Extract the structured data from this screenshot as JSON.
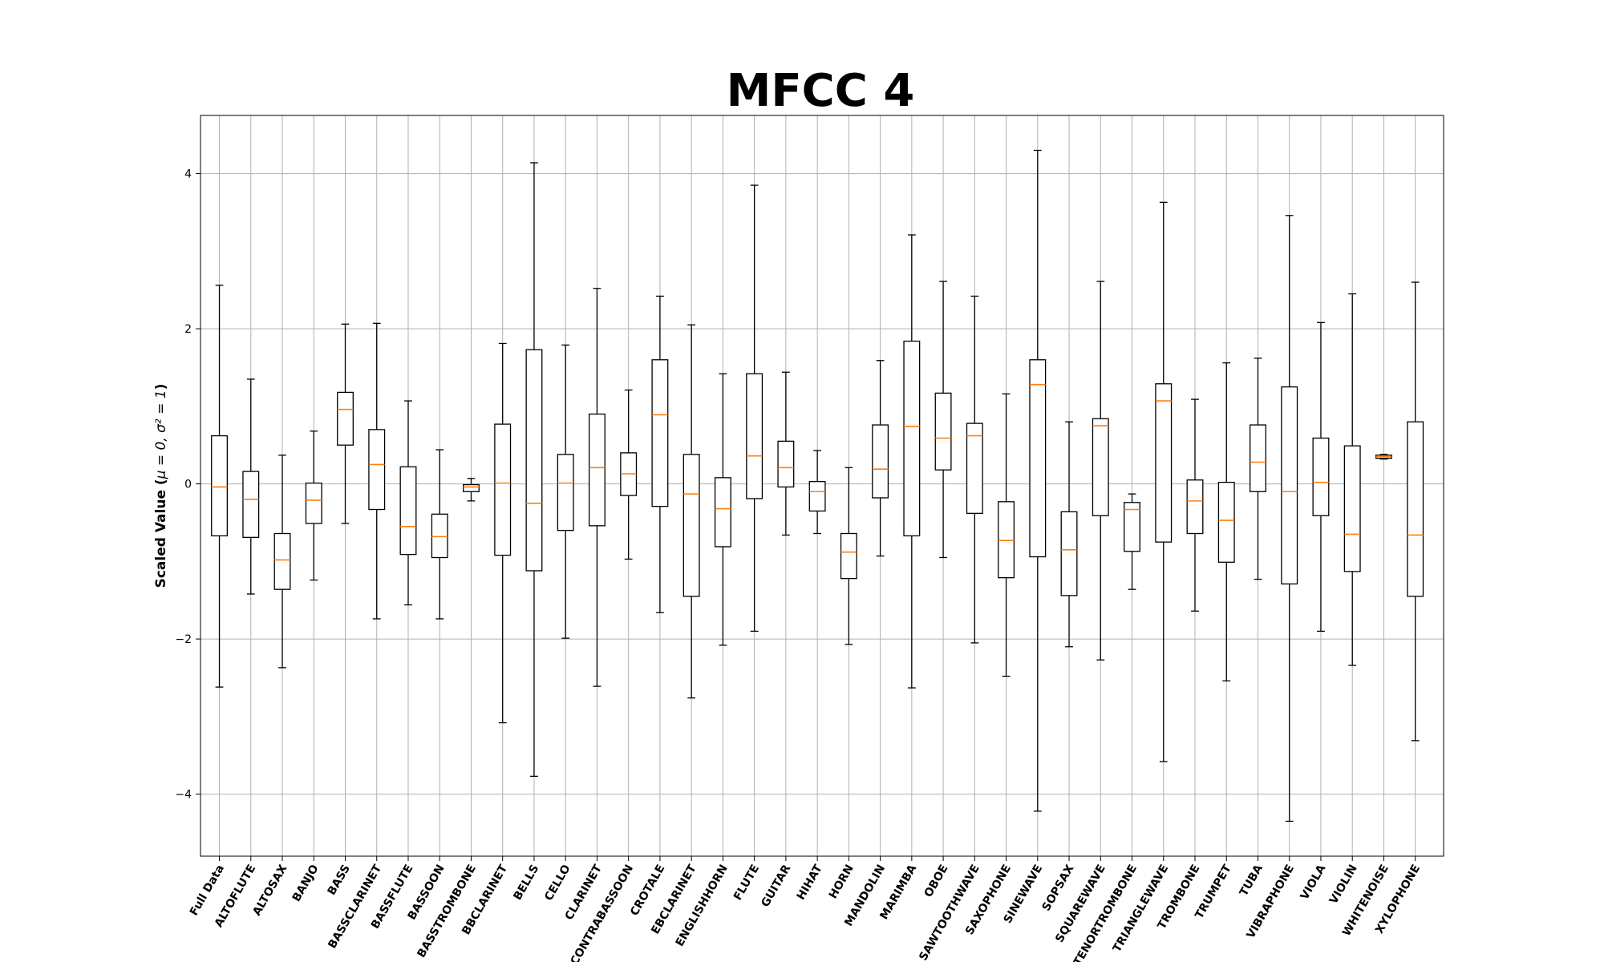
{
  "chart_data": {
    "type": "boxplot",
    "title": "MFCC 4",
    "ylabel_main": "Scaled Value (",
    "ylabel_math": "μ = 0, σ² = 1",
    "ylabel_end": ")",
    "ylim": [
      -4.8,
      4.75
    ],
    "yticks": [
      -4,
      -2,
      0,
      2,
      4
    ],
    "grid": true,
    "colors": {
      "box": "#000000",
      "median": "#ff7f0e",
      "grid": "#b0b0b0"
    },
    "categories": [
      "Full Data",
      "ALTOFLUTE",
      "ALTOSAX",
      "BANJO",
      "BASS",
      "BASSCLARINET",
      "BASSFLUTE",
      "BASSOON",
      "BASSTROMBONE",
      "BBCLARINET",
      "BELLS",
      "CELLO",
      "CLARINET",
      "CONTRABASSOON",
      "CROTALE",
      "EBCLARINET",
      "ENGLISHHORN",
      "FLUTE",
      "GUITAR",
      "HIHAT",
      "HORN",
      "MANDOLIN",
      "MARIMBA",
      "OBOE",
      "SAWTOOTHWAVE",
      "SAXOPHONE",
      "SINEWAVE",
      "SOPSAX",
      "SQUAREWAVE",
      "TENORTROMBONE",
      "TRIANGLEWAVE",
      "TROMBONE",
      "TRUMPET",
      "TUBA",
      "VIBRAPHONE",
      "VIOLA",
      "VIOLIN",
      "WHITENOISE",
      "XYLOPHONE"
    ],
    "boxes": [
      {
        "whislo": -2.62,
        "q1": -0.67,
        "med": -0.04,
        "q3": 0.62,
        "whishi": 2.56
      },
      {
        "whislo": -1.42,
        "q1": -0.69,
        "med": -0.2,
        "q3": 0.16,
        "whishi": 1.35
      },
      {
        "whislo": -2.37,
        "q1": -1.36,
        "med": -0.98,
        "q3": -0.64,
        "whishi": 0.37
      },
      {
        "whislo": -1.24,
        "q1": -0.51,
        "med": -0.21,
        "q3": 0.01,
        "whishi": 0.68
      },
      {
        "whislo": -0.51,
        "q1": 0.5,
        "med": 0.96,
        "q3": 1.18,
        "whishi": 2.06
      },
      {
        "whislo": -1.74,
        "q1": -0.33,
        "med": 0.25,
        "q3": 0.7,
        "whishi": 2.07
      },
      {
        "whislo": -1.56,
        "q1": -0.91,
        "med": -0.55,
        "q3": 0.22,
        "whishi": 1.07
      },
      {
        "whislo": -1.74,
        "q1": -0.95,
        "med": -0.68,
        "q3": -0.39,
        "whishi": 0.44
      },
      {
        "whislo": -0.22,
        "q1": -0.1,
        "med": -0.04,
        "q3": -0.01,
        "whishi": 0.07
      },
      {
        "whislo": -3.08,
        "q1": -0.92,
        "med": 0.01,
        "q3": 0.77,
        "whishi": 1.81
      },
      {
        "whislo": -3.77,
        "q1": -1.12,
        "med": -0.25,
        "q3": 1.73,
        "whishi": 4.14
      },
      {
        "whislo": -1.99,
        "q1": -0.6,
        "med": 0.01,
        "q3": 0.38,
        "whishi": 1.79
      },
      {
        "whislo": -2.61,
        "q1": -0.54,
        "med": 0.21,
        "q3": 0.9,
        "whishi": 2.52
      },
      {
        "whislo": -0.97,
        "q1": -0.15,
        "med": 0.13,
        "q3": 0.4,
        "whishi": 1.21
      },
      {
        "whislo": -1.66,
        "q1": -0.29,
        "med": 0.89,
        "q3": 1.6,
        "whishi": 2.42
      },
      {
        "whislo": -2.76,
        "q1": -1.45,
        "med": -0.13,
        "q3": 0.38,
        "whishi": 2.05
      },
      {
        "whislo": -2.08,
        "q1": -0.81,
        "med": -0.32,
        "q3": 0.08,
        "whishi": 1.42
      },
      {
        "whislo": -1.9,
        "q1": -0.19,
        "med": 0.36,
        "q3": 1.42,
        "whishi": 3.85
      },
      {
        "whislo": -0.66,
        "q1": -0.04,
        "med": 0.21,
        "q3": 0.55,
        "whishi": 1.44
      },
      {
        "whislo": -0.64,
        "q1": -0.35,
        "med": -0.1,
        "q3": 0.03,
        "whishi": 0.43
      },
      {
        "whislo": -2.07,
        "q1": -1.22,
        "med": -0.88,
        "q3": -0.64,
        "whishi": 0.21
      },
      {
        "whislo": -0.93,
        "q1": -0.18,
        "med": 0.19,
        "q3": 0.76,
        "whishi": 1.59
      },
      {
        "whislo": -2.63,
        "q1": -0.67,
        "med": 0.74,
        "q3": 1.84,
        "whishi": 3.21
      },
      {
        "whislo": -0.95,
        "q1": 0.18,
        "med": 0.59,
        "q3": 1.17,
        "whishi": 2.61
      },
      {
        "whislo": -2.05,
        "q1": -0.38,
        "med": 0.62,
        "q3": 0.78,
        "whishi": 2.42
      },
      {
        "whislo": -2.48,
        "q1": -1.21,
        "med": -0.73,
        "q3": -0.23,
        "whishi": 1.16
      },
      {
        "whislo": -4.22,
        "q1": -0.94,
        "med": 1.28,
        "q3": 1.6,
        "whishi": 4.3
      },
      {
        "whislo": -2.1,
        "q1": -1.44,
        "med": -0.85,
        "q3": -0.36,
        "whishi": 0.8
      },
      {
        "whislo": -2.27,
        "q1": -0.41,
        "med": 0.75,
        "q3": 0.84,
        "whishi": 2.61
      },
      {
        "whislo": -1.36,
        "q1": -0.87,
        "med": -0.33,
        "q3": -0.24,
        "whishi": -0.13
      },
      {
        "whislo": -3.58,
        "q1": -0.75,
        "med": 1.07,
        "q3": 1.29,
        "whishi": 3.63
      },
      {
        "whislo": -1.64,
        "q1": -0.64,
        "med": -0.22,
        "q3": 0.05,
        "whishi": 1.09
      },
      {
        "whislo": -2.54,
        "q1": -1.01,
        "med": -0.47,
        "q3": 0.02,
        "whishi": 1.56
      },
      {
        "whislo": -1.23,
        "q1": -0.1,
        "med": 0.28,
        "q3": 0.76,
        "whishi": 1.62
      },
      {
        "whislo": -4.35,
        "q1": -1.29,
        "med": -0.1,
        "q3": 1.25,
        "whishi": 3.46
      },
      {
        "whislo": -1.9,
        "q1": -0.41,
        "med": 0.02,
        "q3": 0.59,
        "whishi": 2.08
      },
      {
        "whislo": -2.34,
        "q1": -1.13,
        "med": -0.65,
        "q3": 0.49,
        "whishi": 2.45
      },
      {
        "whislo": 0.32,
        "q1": 0.33,
        "med": 0.35,
        "q3": 0.37,
        "whishi": 0.38
      },
      {
        "whislo": -3.31,
        "q1": -1.45,
        "med": -0.66,
        "q3": 0.8,
        "whishi": 2.6
      }
    ]
  }
}
